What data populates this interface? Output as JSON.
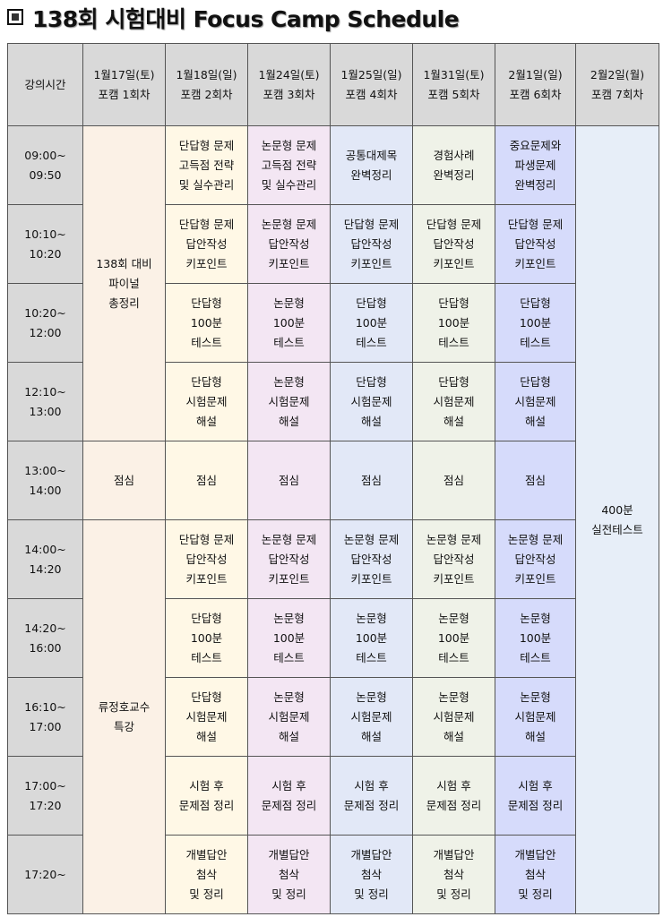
{
  "title": "138회 시험대비 Focus Camp Schedule",
  "headers": [
    "강의시간",
    "1월17일(토)\n포캠 1회차",
    "1월18일(일)\n포캠 2회차",
    "1월24일(토)\n포캠 3회차",
    "1월25일(일)\n포캠 4회차",
    "1월31일(토)\n포캠 5회차",
    "2월1일(일)\n포캠 6회차",
    "2월2일(월)\n포캠 7회차"
  ],
  "times": [
    "09:00~\n09:50",
    "10:10~\n10:20",
    "10:20~\n12:00",
    "12:10~\n13:00",
    "13:00~\n14:00",
    "14:00~\n14:20",
    "14:20~\n16:00",
    "16:10~\n17:00",
    "17:00~\n17:20",
    "17:20~"
  ],
  "col1": {
    "morning": "138회 대비\n파이널\n총정리",
    "lunch": "점심",
    "afternoon": "류정호교수\n특강"
  },
  "col7": "400분\n실전테스트",
  "rows": [
    [
      "단답형 문제\n고득점 전략\n및 실수관리",
      "논문형 문제\n고득점 전략\n및 실수관리",
      "공통대제목\n완벽정리",
      "경험사례\n완벽정리",
      "중요문제와\n파생문제\n완벽정리"
    ],
    [
      "단답형 문제\n답안작성\n키포인트",
      "논문형 문제\n답안작성\n키포인트",
      "단답형 문제\n답안작성\n키포인트",
      "단답형 문제\n답안작성\n키포인트",
      "단답형 문제\n답안작성\n키포인트"
    ],
    [
      "단답형\n100분\n테스트",
      "논문형\n100분\n테스트",
      "단답형\n100분\n테스트",
      "단답형\n100분\n테스트",
      "단답형\n100분\n테스트"
    ],
    [
      "단답형\n시험문제\n해설",
      "논문형\n시험문제\n해설",
      "단답형\n시험문제\n해설",
      "단답형\n시험문제\n해설",
      "단답형\n시험문제\n해설"
    ],
    [
      "점심",
      "점심",
      "점심",
      "점심",
      "점심"
    ],
    [
      "단답형 문제\n답안작성\n키포인트",
      "논문형 문제\n답안작성\n키포인트",
      "논문형 문제\n답안작성\n키포인트",
      "논문형 문제\n답안작성\n키포인트",
      "논문형 문제\n답안작성\n키포인트"
    ],
    [
      "단답형\n100분\n테스트",
      "논문형\n100분\n테스트",
      "논문형\n100분\n테스트",
      "논문형\n100분\n테스트",
      "논문형\n100분\n테스트"
    ],
    [
      "단답형\n시험문제\n해설",
      "논문형\n시험문제\n해설",
      "논문형\n시험문제\n해설",
      "논문형\n시험문제\n해설",
      "논문형\n시험문제\n해설"
    ],
    [
      "시험 후\n문제점 정리",
      "시험 후\n문제점 정리",
      "시험 후\n문제점 정리",
      "시험 후\n문제점 정리",
      "시험 후\n문제점 정리"
    ],
    [
      "개별답안\n첨삭\n및 정리",
      "개별답안\n첨삭\n및 정리",
      "개별답안\n첨삭\n및 정리",
      "개별답안\n첨삭\n및 정리",
      "개별답안\n첨삭\n및 정리"
    ]
  ]
}
